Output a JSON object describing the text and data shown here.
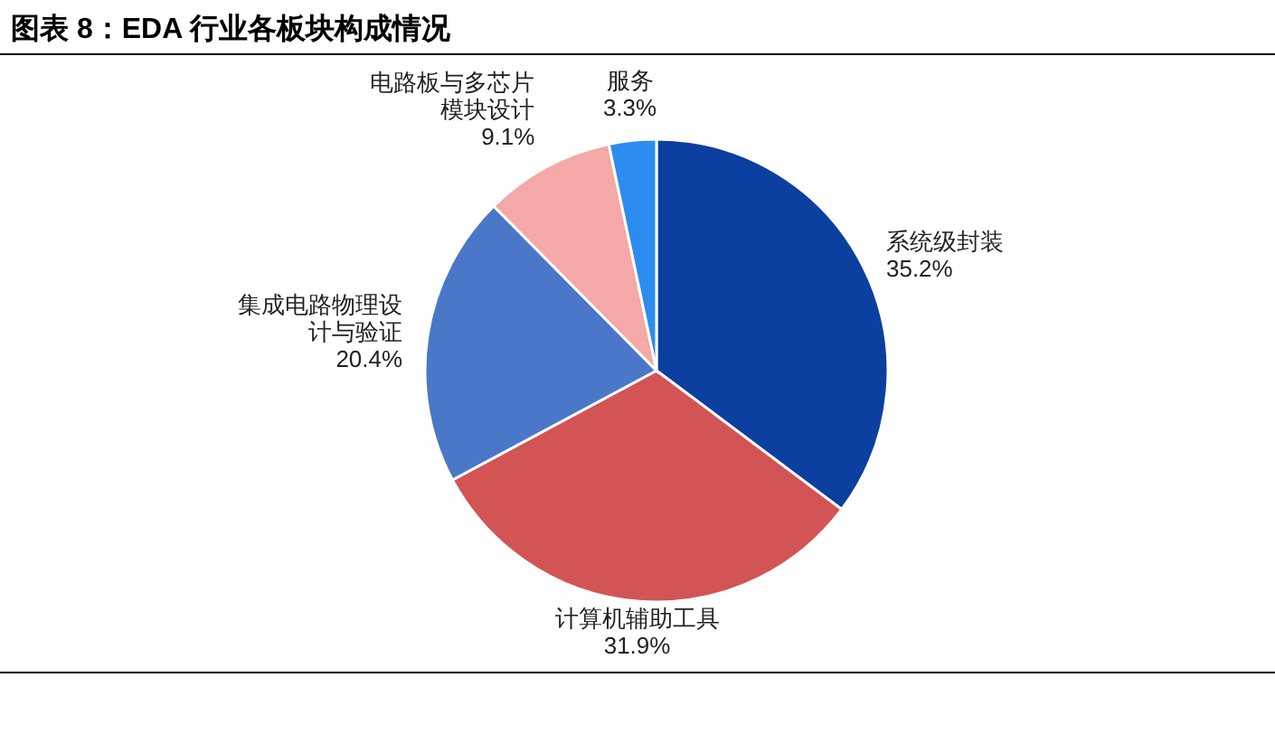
{
  "chart_data": {
    "type": "pie",
    "title": "图表 8：EDA 行业各板块构成情况",
    "categories": [
      "系统级封装",
      "计算机辅助工具",
      "集成电路物理设计与验证",
      "电路板与多芯片模块设计",
      "服务"
    ],
    "values": [
      35.2,
      31.9,
      20.4,
      9.1,
      3.3
    ],
    "value_labels": [
      "35.2%",
      "31.9%",
      "20.4%",
      "9.1%",
      "3.3%"
    ],
    "colors": [
      "#0b3fa0",
      "#d35454",
      "#4a77c8",
      "#f4a8a8",
      "#2c8cf0"
    ]
  }
}
